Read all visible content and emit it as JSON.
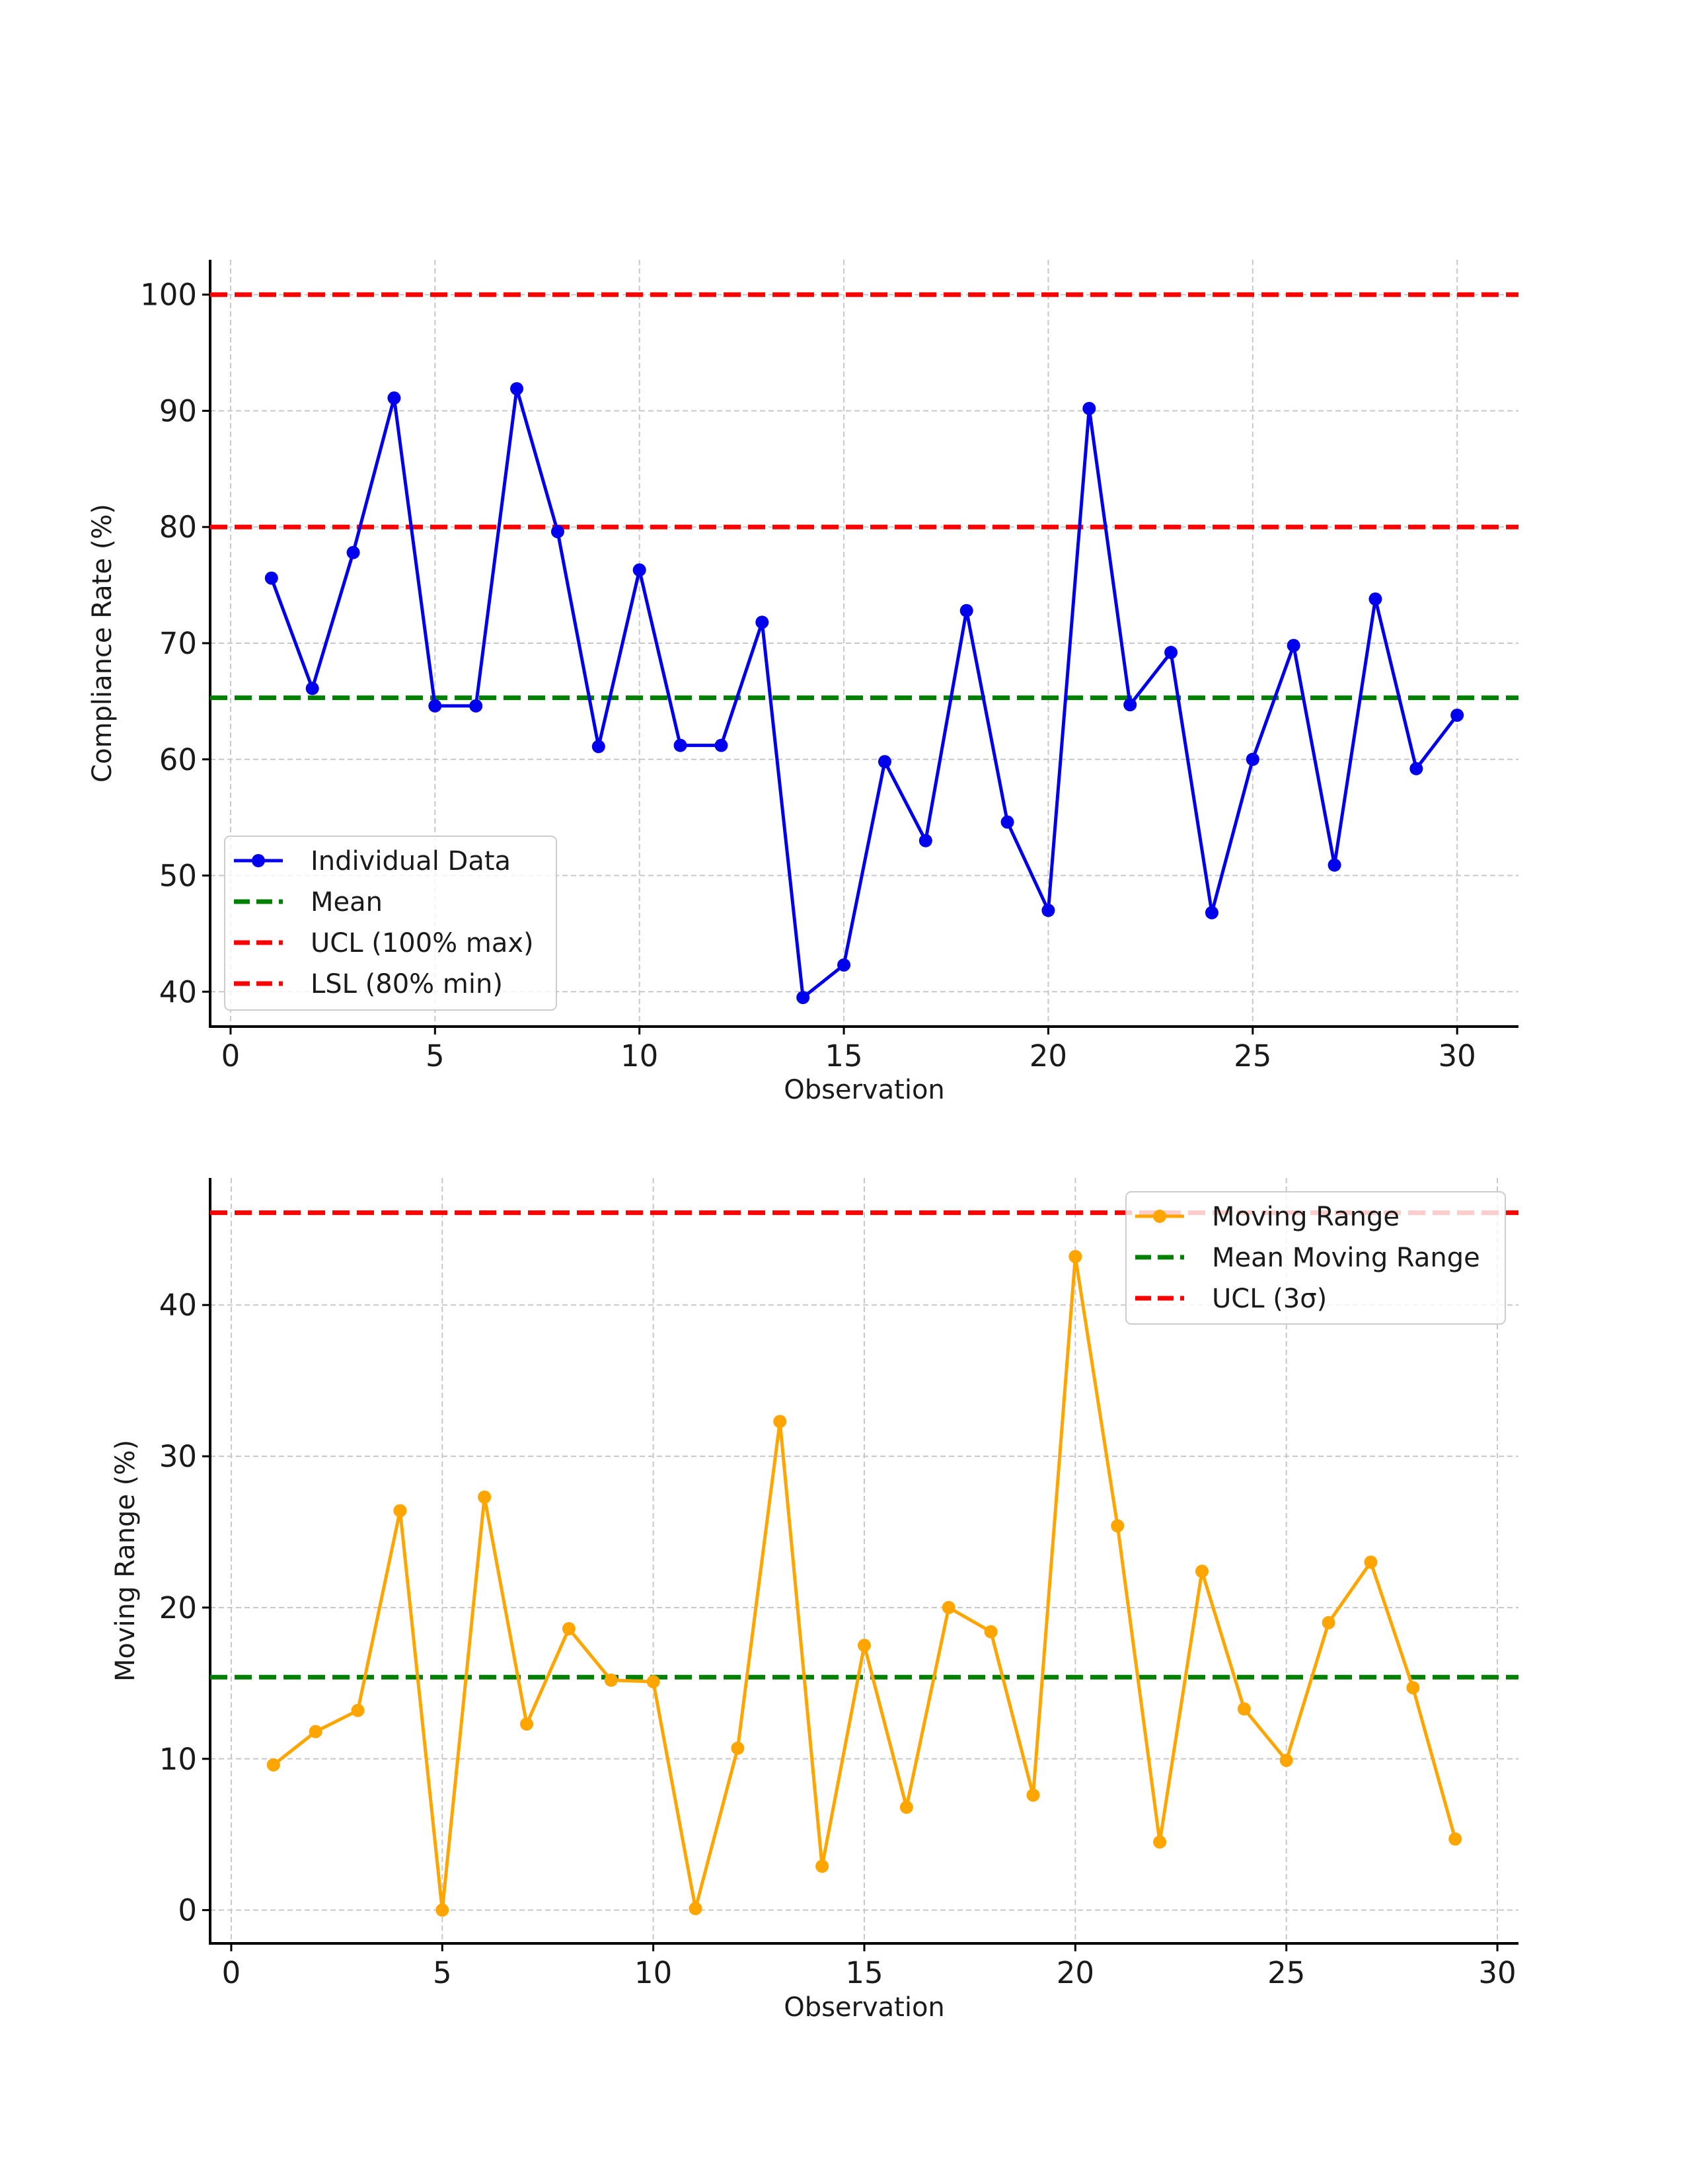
{
  "chart_data": [
    {
      "type": "line",
      "xlabel": "Observation",
      "ylabel": "Compliance Rate (%)",
      "xlim": [
        -0.5,
        31.5
      ],
      "ylim": [
        37,
        103
      ],
      "xticks": [
        0,
        5,
        10,
        15,
        20,
        25,
        30
      ],
      "yticks": [
        40,
        50,
        60,
        70,
        80,
        90,
        100
      ],
      "grid": true,
      "legend_position": "lower-left",
      "series": [
        {
          "name": "Individual Data",
          "color": "#0000ee",
          "marker": "circle",
          "x": [
            1,
            2,
            3,
            4,
            5,
            6,
            7,
            8,
            9,
            10,
            11,
            12,
            13,
            14,
            15,
            16,
            17,
            18,
            19,
            20,
            21,
            22,
            23,
            24,
            25,
            26,
            27,
            28,
            29,
            30
          ],
          "y": [
            75.6,
            66.1,
            77.8,
            91.1,
            64.6,
            64.6,
            91.9,
            79.6,
            61.1,
            76.3,
            61.2,
            61.2,
            71.8,
            39.5,
            42.3,
            59.8,
            53.0,
            72.8,
            54.6,
            47.0,
            90.2,
            64.7,
            69.2,
            46.8,
            60.0,
            69.8,
            50.9,
            73.8,
            59.2,
            63.8
          ]
        },
        {
          "name": "Mean",
          "type": "hline",
          "y": 65.3,
          "color": "#008000",
          "style": "dashed"
        },
        {
          "name": "UCL (100% max)",
          "type": "hline",
          "y": 100,
          "color": "#ff0000",
          "style": "dashed"
        },
        {
          "name": "LSL (80% min)",
          "type": "hline",
          "y": 80,
          "color": "#ff0000",
          "style": "dashed"
        }
      ]
    },
    {
      "type": "line",
      "xlabel": "Observation",
      "ylabel": "Moving Range (%)",
      "xlim": [
        -0.5,
        30.5
      ],
      "ylim": [
        -2.2,
        48.4
      ],
      "xticks": [
        0,
        5,
        10,
        15,
        20,
        25,
        30
      ],
      "yticks": [
        0,
        10,
        20,
        30,
        40
      ],
      "grid": true,
      "legend_position": "top-right",
      "series": [
        {
          "name": "Moving Range",
          "color": "#ffa500",
          "marker": "circle",
          "x": [
            1,
            2,
            3,
            4,
            5,
            6,
            7,
            8,
            9,
            10,
            11,
            12,
            13,
            14,
            15,
            16,
            17,
            18,
            19,
            20,
            21,
            22,
            23,
            24,
            25,
            26,
            27,
            28,
            29
          ],
          "y": [
            9.6,
            11.8,
            13.2,
            26.4,
            0.0,
            27.3,
            12.3,
            18.6,
            15.2,
            15.1,
            0.1,
            10.7,
            32.3,
            2.9,
            17.5,
            6.8,
            20.0,
            18.4,
            7.6,
            43.2,
            25.4,
            4.5,
            22.4,
            13.3,
            9.9,
            19.0,
            23.0,
            14.7,
            4.7
          ]
        },
        {
          "name": "Mean Moving Range",
          "type": "hline",
          "y": 15.4,
          "color": "#008000",
          "style": "dashed"
        },
        {
          "name": "UCL (3σ)",
          "type": "hline",
          "y": 46.1,
          "color": "#ff0000",
          "style": "dashed"
        }
      ]
    }
  ]
}
